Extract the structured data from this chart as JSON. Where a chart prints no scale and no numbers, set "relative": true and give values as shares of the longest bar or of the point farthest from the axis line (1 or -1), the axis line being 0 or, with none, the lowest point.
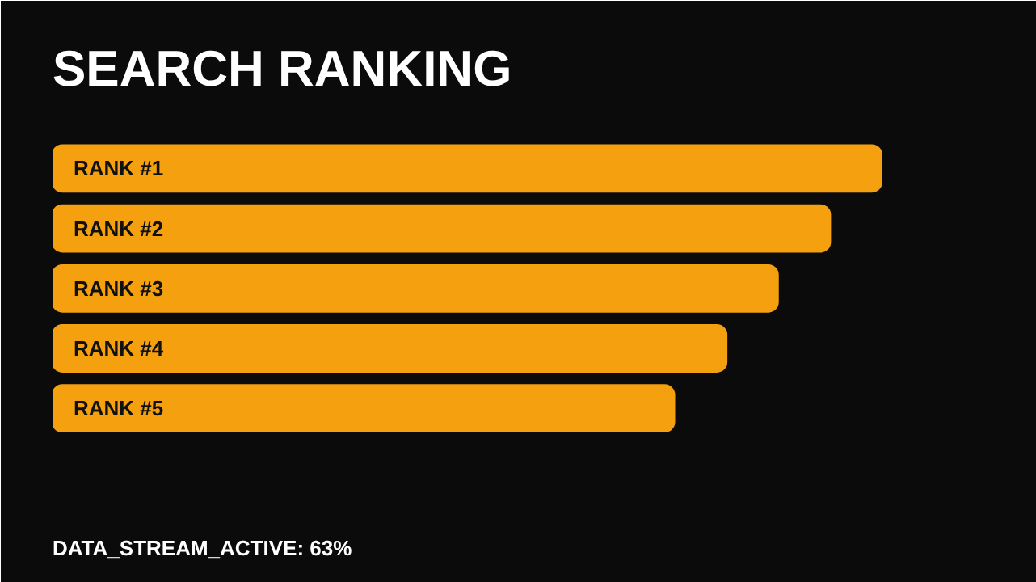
{
  "chart_data": {
    "type": "bar",
    "orientation": "horizontal",
    "relative": true,
    "title": "SEARCH RANKING",
    "categories": [
      "RANK #1",
      "RANK #2",
      "RANK #3",
      "RANK #4",
      "RANK #5"
    ],
    "values": [
      1,
      0.938,
      0.875,
      0.813,
      0.75
    ],
    "color": "#f5a00f",
    "grid": false,
    "annotations": [
      "DATA_STREAM_ACTIVE: 63%"
    ]
  }
}
